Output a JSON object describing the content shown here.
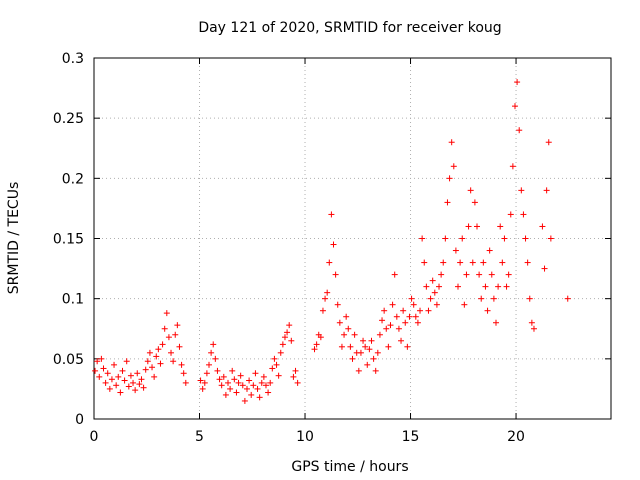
{
  "chart_data": {
    "type": "scatter",
    "title": "Day 121 of 2020, SRMTID for receiver koug",
    "xlabel": "GPS time / hours",
    "ylabel": "SRMTID / TECUs",
    "xlim": [
      0,
      24.5
    ],
    "ylim": [
      0,
      0.3
    ],
    "x_ticks": [
      0,
      5,
      10,
      15,
      20
    ],
    "y_ticks": [
      0,
      0.05,
      0.1,
      0.15,
      0.2,
      0.25,
      0.3
    ],
    "x_tick_labels": [
      "0",
      "5",
      "10",
      "15",
      "20"
    ],
    "y_tick_labels": [
      "0",
      "0.05",
      "0.1",
      "0.15",
      "0.2",
      "0.25",
      "0.3"
    ],
    "grid": true,
    "marker": "plus",
    "series_color": "#ff0000",
    "series": [
      {
        "name": "SRMTID",
        "points": [
          [
            0.05,
            0.04
          ],
          [
            0.15,
            0.048
          ],
          [
            0.25,
            0.035
          ],
          [
            0.35,
            0.05
          ],
          [
            0.45,
            0.042
          ],
          [
            0.55,
            0.03
          ],
          [
            0.65,
            0.038
          ],
          [
            0.75,
            0.025
          ],
          [
            0.85,
            0.033
          ],
          [
            0.95,
            0.045
          ],
          [
            1.05,
            0.028
          ],
          [
            1.15,
            0.035
          ],
          [
            1.25,
            0.022
          ],
          [
            1.35,
            0.04
          ],
          [
            1.45,
            0.032
          ],
          [
            1.55,
            0.048
          ],
          [
            1.65,
            0.027
          ],
          [
            1.75,
            0.036
          ],
          [
            1.85,
            0.03
          ],
          [
            1.95,
            0.024
          ],
          [
            2.05,
            0.038
          ],
          [
            2.15,
            0.029
          ],
          [
            2.25,
            0.033
          ],
          [
            2.35,
            0.026
          ],
          [
            2.45,
            0.041
          ],
          [
            2.55,
            0.048
          ],
          [
            2.65,
            0.055
          ],
          [
            2.75,
            0.043
          ],
          [
            2.85,
            0.035
          ],
          [
            2.95,
            0.052
          ],
          [
            3.05,
            0.058
          ],
          [
            3.15,
            0.046
          ],
          [
            3.25,
            0.062
          ],
          [
            3.35,
            0.075
          ],
          [
            3.45,
            0.088
          ],
          [
            3.55,
            0.068
          ],
          [
            3.65,
            0.055
          ],
          [
            3.75,
            0.048
          ],
          [
            3.85,
            0.07
          ],
          [
            3.95,
            0.078
          ],
          [
            4.05,
            0.06
          ],
          [
            4.15,
            0.045
          ],
          [
            4.25,
            0.038
          ],
          [
            4.35,
            0.03
          ],
          [
            5.05,
            0.032
          ],
          [
            5.15,
            0.025
          ],
          [
            5.25,
            0.03
          ],
          [
            5.35,
            0.038
          ],
          [
            5.45,
            0.045
          ],
          [
            5.55,
            0.055
          ],
          [
            5.65,
            0.062
          ],
          [
            5.75,
            0.05
          ],
          [
            5.85,
            0.04
          ],
          [
            5.95,
            0.033
          ],
          [
            6.05,
            0.028
          ],
          [
            6.15,
            0.035
          ],
          [
            6.25,
            0.02
          ],
          [
            6.35,
            0.03
          ],
          [
            6.45,
            0.025
          ],
          [
            6.55,
            0.04
          ],
          [
            6.65,
            0.033
          ],
          [
            6.75,
            0.022
          ],
          [
            6.85,
            0.03
          ],
          [
            6.95,
            0.036
          ],
          [
            7.05,
            0.028
          ],
          [
            7.15,
            0.015
          ],
          [
            7.25,
            0.025
          ],
          [
            7.35,
            0.032
          ],
          [
            7.45,
            0.02
          ],
          [
            7.55,
            0.028
          ],
          [
            7.65,
            0.038
          ],
          [
            7.75,
            0.025
          ],
          [
            7.85,
            0.018
          ],
          [
            7.95,
            0.03
          ],
          [
            8.05,
            0.035
          ],
          [
            8.15,
            0.028
          ],
          [
            8.25,
            0.022
          ],
          [
            8.35,
            0.03
          ],
          [
            8.45,
            0.042
          ],
          [
            8.55,
            0.05
          ],
          [
            8.65,
            0.045
          ],
          [
            8.75,
            0.036
          ],
          [
            8.85,
            0.055
          ],
          [
            8.95,
            0.062
          ],
          [
            9.05,
            0.068
          ],
          [
            9.15,
            0.072
          ],
          [
            9.25,
            0.078
          ],
          [
            9.35,
            0.065
          ],
          [
            9.45,
            0.035
          ],
          [
            9.55,
            0.04
          ],
          [
            9.65,
            0.03
          ],
          [
            10.45,
            0.058
          ],
          [
            10.55,
            0.062
          ],
          [
            10.65,
            0.07
          ],
          [
            10.75,
            0.068
          ],
          [
            10.85,
            0.09
          ],
          [
            10.95,
            0.1
          ],
          [
            11.05,
            0.105
          ],
          [
            11.15,
            0.13
          ],
          [
            11.25,
            0.17
          ],
          [
            11.35,
            0.145
          ],
          [
            11.45,
            0.12
          ],
          [
            11.55,
            0.095
          ],
          [
            11.65,
            0.08
          ],
          [
            11.75,
            0.06
          ],
          [
            11.85,
            0.07
          ],
          [
            11.95,
            0.085
          ],
          [
            12.05,
            0.075
          ],
          [
            12.15,
            0.06
          ],
          [
            12.25,
            0.05
          ],
          [
            12.35,
            0.07
          ],
          [
            12.45,
            0.055
          ],
          [
            12.55,
            0.04
          ],
          [
            12.65,
            0.055
          ],
          [
            12.75,
            0.065
          ],
          [
            12.85,
            0.06
          ],
          [
            12.95,
            0.045
          ],
          [
            13.05,
            0.058
          ],
          [
            13.15,
            0.065
          ],
          [
            13.25,
            0.05
          ],
          [
            13.35,
            0.04
          ],
          [
            13.45,
            0.055
          ],
          [
            13.55,
            0.07
          ],
          [
            13.65,
            0.082
          ],
          [
            13.75,
            0.09
          ],
          [
            13.85,
            0.075
          ],
          [
            13.95,
            0.06
          ],
          [
            14.05,
            0.078
          ],
          [
            14.15,
            0.095
          ],
          [
            14.25,
            0.12
          ],
          [
            14.35,
            0.085
          ],
          [
            14.45,
            0.075
          ],
          [
            14.55,
            0.065
          ],
          [
            14.65,
            0.09
          ],
          [
            14.75,
            0.08
          ],
          [
            14.85,
            0.06
          ],
          [
            14.95,
            0.085
          ],
          [
            15.05,
            0.1
          ],
          [
            15.15,
            0.095
          ],
          [
            15.25,
            0.085
          ],
          [
            15.35,
            0.08
          ],
          [
            15.45,
            0.09
          ],
          [
            15.55,
            0.15
          ],
          [
            15.65,
            0.13
          ],
          [
            15.75,
            0.11
          ],
          [
            15.85,
            0.09
          ],
          [
            15.95,
            0.1
          ],
          [
            16.05,
            0.115
          ],
          [
            16.15,
            0.105
          ],
          [
            16.25,
            0.095
          ],
          [
            16.35,
            0.11
          ],
          [
            16.45,
            0.12
          ],
          [
            16.55,
            0.13
          ],
          [
            16.65,
            0.15
          ],
          [
            16.75,
            0.18
          ],
          [
            16.85,
            0.2
          ],
          [
            16.95,
            0.23
          ],
          [
            17.05,
            0.21
          ],
          [
            17.15,
            0.14
          ],
          [
            17.25,
            0.11
          ],
          [
            17.35,
            0.13
          ],
          [
            17.45,
            0.15
          ],
          [
            17.55,
            0.095
          ],
          [
            17.65,
            0.12
          ],
          [
            17.75,
            0.16
          ],
          [
            17.85,
            0.19
          ],
          [
            17.95,
            0.13
          ],
          [
            18.05,
            0.18
          ],
          [
            18.15,
            0.16
          ],
          [
            18.25,
            0.12
          ],
          [
            18.35,
            0.1
          ],
          [
            18.45,
            0.13
          ],
          [
            18.55,
            0.11
          ],
          [
            18.65,
            0.09
          ],
          [
            18.75,
            0.14
          ],
          [
            18.85,
            0.12
          ],
          [
            18.95,
            0.1
          ],
          [
            19.05,
            0.08
          ],
          [
            19.15,
            0.11
          ],
          [
            19.25,
            0.16
          ],
          [
            19.35,
            0.13
          ],
          [
            19.45,
            0.15
          ],
          [
            19.55,
            0.11
          ],
          [
            19.65,
            0.12
          ],
          [
            19.75,
            0.17
          ],
          [
            19.85,
            0.21
          ],
          [
            19.95,
            0.26
          ],
          [
            20.05,
            0.28
          ],
          [
            20.15,
            0.24
          ],
          [
            20.25,
            0.19
          ],
          [
            20.35,
            0.17
          ],
          [
            20.45,
            0.15
          ],
          [
            20.55,
            0.13
          ],
          [
            20.65,
            0.1
          ],
          [
            20.75,
            0.08
          ],
          [
            20.85,
            0.075
          ],
          [
            21.25,
            0.16
          ],
          [
            21.35,
            0.125
          ],
          [
            21.45,
            0.19
          ],
          [
            21.55,
            0.23
          ],
          [
            21.65,
            0.15
          ],
          [
            22.45,
            0.1
          ]
        ]
      }
    ]
  }
}
